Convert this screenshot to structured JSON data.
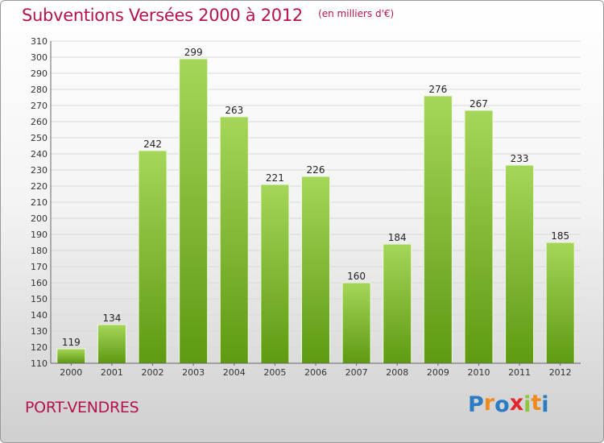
{
  "header": {
    "title": "Subventions Versées 2000 à 2012",
    "subtitle": "(en milliers d'€)"
  },
  "footer": {
    "commune": "PORT-VENDRES"
  },
  "logo": {
    "text": "Proxiti",
    "letters": [
      "P",
      "r",
      "o",
      "x",
      "i",
      "t",
      "i"
    ],
    "colors": [
      "#2b7cc3",
      "#f08a1c",
      "#2b7cc3",
      "#e3262e",
      "#8dc63f",
      "#f08a1c",
      "#2b7cc3"
    ]
  },
  "colors": {
    "bar_top": "#a5d659",
    "bar_bottom": "#5e9a12",
    "title": "#b5124f",
    "grid": "#d9d9d9"
  },
  "chart_data": {
    "type": "bar",
    "categories": [
      "2000",
      "2001",
      "2002",
      "2003",
      "2004",
      "2005",
      "2006",
      "2007",
      "2008",
      "2009",
      "2010",
      "2011",
      "2012"
    ],
    "values": [
      119,
      134,
      242,
      299,
      263,
      221,
      226,
      160,
      184,
      276,
      267,
      233,
      185
    ],
    "title": "Subventions Versées 2000 à 2012",
    "xlabel": "",
    "ylabel": "",
    "ylim": [
      110,
      310
    ],
    "yticks": [
      110,
      120,
      130,
      140,
      150,
      160,
      170,
      180,
      190,
      200,
      210,
      220,
      230,
      240,
      250,
      260,
      270,
      280,
      290,
      300,
      310
    ],
    "grid": true,
    "data_labels": true
  }
}
